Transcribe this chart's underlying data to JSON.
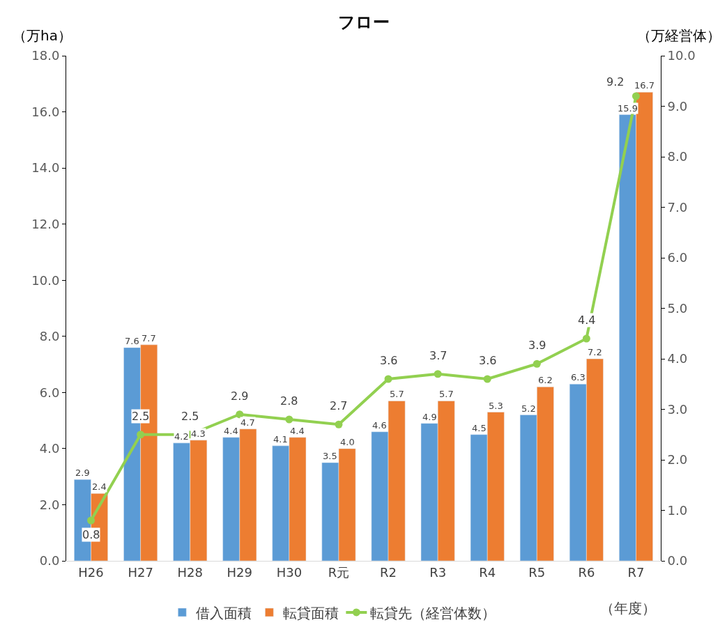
{
  "chart_data": {
    "type": "bar",
    "title": "フロー",
    "ylabel": "（万ha）",
    "y2label": "（万経営体）",
    "xlabel": "（年度）",
    "categories": [
      "H26",
      "H27",
      "H28",
      "H29",
      "H30",
      "R元",
      "R2",
      "R3",
      "R4",
      "R5",
      "R6",
      "R7"
    ],
    "series": [
      {
        "name": "借入面積",
        "color": "#5b9bd5",
        "values": [
          2.9,
          7.6,
          4.2,
          4.4,
          4.1,
          3.5,
          4.6,
          4.9,
          4.5,
          5.2,
          6.3,
          15.9
        ],
        "value_labels": [
          "2.9",
          "7.6",
          "4.2",
          "4.4",
          "4.1",
          "3.5",
          "4.6",
          "4.9",
          "4.5",
          "5.2",
          "6.3",
          "15.9"
        ]
      },
      {
        "name": "転貸面積",
        "color": "#ed7d31",
        "values": [
          2.4,
          7.7,
          4.3,
          4.7,
          4.4,
          4.0,
          5.7,
          5.7,
          5.3,
          6.2,
          7.2,
          16.7
        ],
        "value_labels": [
          "2.4",
          "7.7",
          "4.3",
          "4.7",
          "4.4",
          "4.0",
          "5.7",
          "5.7",
          "5.3",
          "6.2",
          "7.2",
          "16.7"
        ]
      },
      {
        "name": "転貸先（経営体数）",
        "color": "#92d050",
        "type": "line",
        "axis": "y2",
        "marker": "circle",
        "values": [
          0.8,
          2.5,
          2.5,
          2.9,
          2.8,
          2.7,
          3.6,
          3.7,
          3.6,
          3.9,
          4.4,
          9.2
        ],
        "value_labels": [
          "0.8",
          "2.5",
          "2.5",
          "2.9",
          "2.8",
          "2.7",
          "3.6",
          "3.7",
          "3.6",
          "3.9",
          "4.4",
          "9.2"
        ]
      }
    ],
    "ylim": [
      0,
      18
    ],
    "yticks": [
      {
        "value": 0,
        "label": "0.0"
      },
      {
        "value": 2,
        "label": "2.0"
      },
      {
        "value": 4,
        "label": "4.0"
      },
      {
        "value": 6,
        "label": "6.0"
      },
      {
        "value": 8,
        "label": "8.0"
      },
      {
        "value": 10,
        "label": "10.0"
      },
      {
        "value": 12,
        "label": "12.0"
      },
      {
        "value": 14,
        "label": "14.0"
      },
      {
        "value": 16,
        "label": "16.0"
      },
      {
        "value": 18,
        "label": "18.0"
      }
    ],
    "y2lim": [
      0,
      10
    ],
    "y2ticks": [
      {
        "value": 0,
        "label": "0.0"
      },
      {
        "value": 1,
        "label": "1.0"
      },
      {
        "value": 2,
        "label": "2.0"
      },
      {
        "value": 3,
        "label": "3.0"
      },
      {
        "value": 4,
        "label": "4.0"
      },
      {
        "value": 5,
        "label": "5.0"
      },
      {
        "value": 6,
        "label": "6.0"
      },
      {
        "value": 7,
        "label": "7.0"
      },
      {
        "value": 8,
        "label": "8.0"
      },
      {
        "value": 9,
        "label": "9.0"
      },
      {
        "value": 10,
        "label": "10.0"
      }
    ],
    "legend": "bottom"
  }
}
